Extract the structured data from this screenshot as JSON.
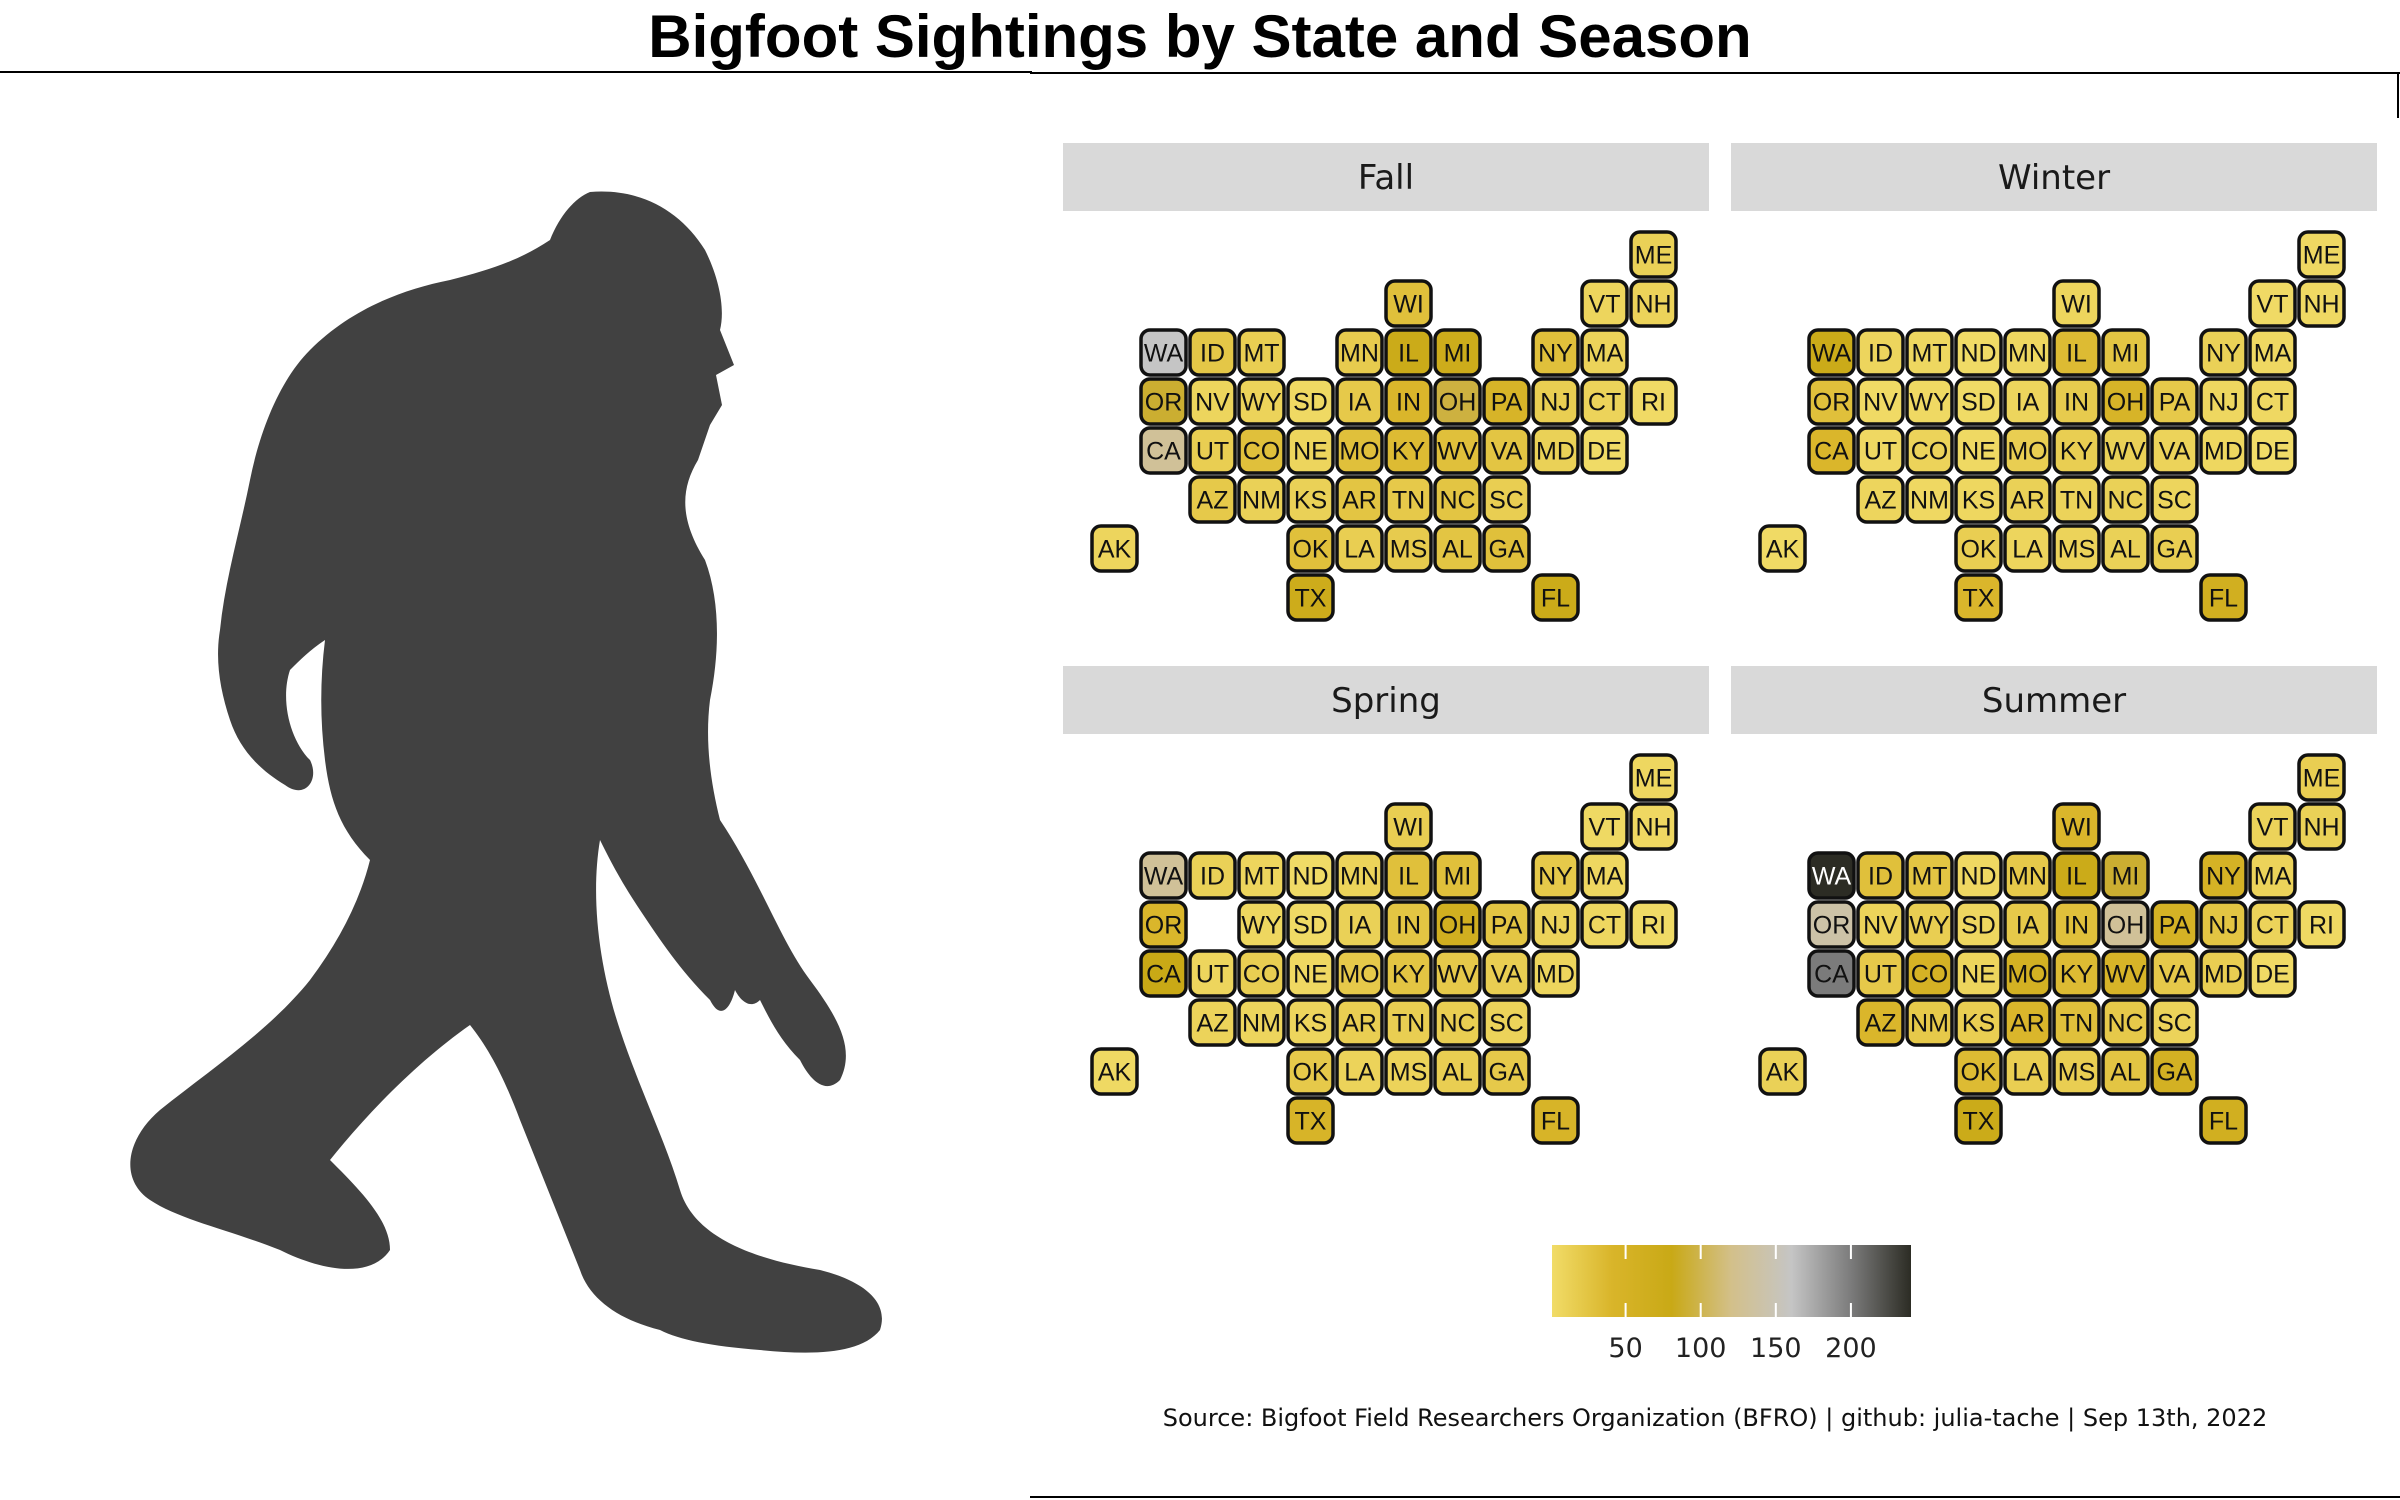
{
  "title": "Bigfoot Sightings by State and Season",
  "caption": "Source: Bigfoot Field Researchers Organization (BFRO) | github: julia-tache | Sep 13th, 2022",
  "figure": {
    "name": "bigfoot-silhouette",
    "color": "#414141"
  },
  "colors": {
    "palette": [
      "#f1dc68",
      "#d9b52a",
      "#c9a916",
      "#d3c08a",
      "#c5c5c5",
      "#7b7b7b",
      "#2c2c24"
    ],
    "tile_border": "#111111",
    "strip_background": "#d9d9d9"
  },
  "chart_data": {
    "type": "heatmap",
    "title": "Bigfoot Sightings by State and Season",
    "panels": [
      "Fall",
      "Winter",
      "Spring",
      "Summer"
    ],
    "states": [
      {
        "state": "ME",
        "col": 11,
        "row": 0
      },
      {
        "state": "WI",
        "col": 6,
        "row": 1
      },
      {
        "state": "VT",
        "col": 10,
        "row": 1
      },
      {
        "state": "NH",
        "col": 11,
        "row": 1
      },
      {
        "state": "WA",
        "col": 1,
        "row": 2
      },
      {
        "state": "ID",
        "col": 2,
        "row": 2
      },
      {
        "state": "MT",
        "col": 3,
        "row": 2
      },
      {
        "state": "ND",
        "col": 4,
        "row": 2
      },
      {
        "state": "MN",
        "col": 5,
        "row": 2
      },
      {
        "state": "IL",
        "col": 6,
        "row": 2
      },
      {
        "state": "MI",
        "col": 7,
        "row": 2
      },
      {
        "state": "NY",
        "col": 9,
        "row": 2
      },
      {
        "state": "MA",
        "col": 10,
        "row": 2
      },
      {
        "state": "OR",
        "col": 1,
        "row": 3
      },
      {
        "state": "NV",
        "col": 2,
        "row": 3
      },
      {
        "state": "WY",
        "col": 3,
        "row": 3
      },
      {
        "state": "SD",
        "col": 4,
        "row": 3
      },
      {
        "state": "IA",
        "col": 5,
        "row": 3
      },
      {
        "state": "IN",
        "col": 6,
        "row": 3
      },
      {
        "state": "OH",
        "col": 7,
        "row": 3
      },
      {
        "state": "PA",
        "col": 8,
        "row": 3
      },
      {
        "state": "NJ",
        "col": 9,
        "row": 3
      },
      {
        "state": "CT",
        "col": 10,
        "row": 3
      },
      {
        "state": "RI",
        "col": 11,
        "row": 3
      },
      {
        "state": "CA",
        "col": 1,
        "row": 4
      },
      {
        "state": "UT",
        "col": 2,
        "row": 4
      },
      {
        "state": "CO",
        "col": 3,
        "row": 4
      },
      {
        "state": "NE",
        "col": 4,
        "row": 4
      },
      {
        "state": "MO",
        "col": 5,
        "row": 4
      },
      {
        "state": "KY",
        "col": 6,
        "row": 4
      },
      {
        "state": "WV",
        "col": 7,
        "row": 4
      },
      {
        "state": "VA",
        "col": 8,
        "row": 4
      },
      {
        "state": "MD",
        "col": 9,
        "row": 4
      },
      {
        "state": "DE",
        "col": 10,
        "row": 4
      },
      {
        "state": "AZ",
        "col": 2,
        "row": 5
      },
      {
        "state": "NM",
        "col": 3,
        "row": 5
      },
      {
        "state": "KS",
        "col": 4,
        "row": 5
      },
      {
        "state": "AR",
        "col": 5,
        "row": 5
      },
      {
        "state": "TN",
        "col": 6,
        "row": 5
      },
      {
        "state": "NC",
        "col": 7,
        "row": 5
      },
      {
        "state": "SC",
        "col": 8,
        "row": 5
      },
      {
        "state": "AK",
        "col": 0,
        "row": 6
      },
      {
        "state": "OK",
        "col": 4,
        "row": 6
      },
      {
        "state": "LA",
        "col": 5,
        "row": 6
      },
      {
        "state": "MS",
        "col": 6,
        "row": 6
      },
      {
        "state": "AL",
        "col": 7,
        "row": 6
      },
      {
        "state": "GA",
        "col": 8,
        "row": 6
      },
      {
        "state": "TX",
        "col": 4,
        "row": 7
      },
      {
        "state": "FL",
        "col": 9,
        "row": 7
      }
    ],
    "values": {
      "Fall": {
        "ME": 12,
        "WI": 30,
        "VT": 8,
        "NH": 10,
        "WA": 160,
        "ID": 22,
        "MT": 15,
        "MN": 18,
        "IL": 75,
        "MI": 70,
        "NY": 30,
        "MA": 10,
        "OR": 90,
        "NV": 8,
        "WY": 10,
        "SD": 4,
        "IA": 20,
        "IN": 40,
        "OH": 95,
        "PA": 45,
        "NJ": 15,
        "CT": 10,
        "RI": 3,
        "CA": 130,
        "UT": 15,
        "CO": 30,
        "NE": 8,
        "MO": 30,
        "KY": 35,
        "WV": 30,
        "VA": 25,
        "MD": 12,
        "DE": 2,
        "AZ": 20,
        "NM": 12,
        "KS": 12,
        "AR": 25,
        "TN": 20,
        "NC": 25,
        "SC": 15,
        "AK": 8,
        "OK": 30,
        "LA": 15,
        "MS": 18,
        "AL": 25,
        "GA": 30,
        "TX": 70,
        "FL": 75
      },
      "Winter": {
        "ME": 5,
        "WI": 8,
        "VT": 3,
        "NH": 4,
        "WA": 75,
        "ID": 8,
        "MT": 6,
        "ND": 2,
        "MN": 6,
        "IL": 35,
        "MI": 25,
        "NY": 12,
        "MA": 5,
        "OR": 30,
        "NV": 3,
        "WY": 4,
        "SD": 2,
        "IA": 8,
        "IN": 18,
        "OH": 45,
        "PA": 20,
        "NJ": 6,
        "CT": 5,
        "CA": 40,
        "UT": 5,
        "CO": 10,
        "NE": 4,
        "MO": 15,
        "KY": 15,
        "WV": 12,
        "VA": 10,
        "MD": 6,
        "DE": 1,
        "AZ": 8,
        "NM": 5,
        "KS": 6,
        "AR": 12,
        "TN": 10,
        "NC": 12,
        "SC": 8,
        "AK": 3,
        "OK": 15,
        "LA": 8,
        "MS": 10,
        "AL": 12,
        "GA": 15,
        "TX": 40,
        "FL": 60
      },
      "Spring": {
        "ME": 6,
        "WI": 15,
        "VT": 4,
        "NH": 5,
        "WA": 130,
        "ID": 12,
        "MT": 8,
        "ND": 2,
        "MN": 10,
        "IL": 30,
        "MI": 30,
        "NY": 20,
        "MA": 6,
        "OR": 40,
        "WY": 6,
        "SD": 3,
        "IA": 12,
        "IN": 25,
        "OH": 60,
        "PA": 25,
        "NJ": 10,
        "CT": 6,
        "RI": 2,
        "CA": 80,
        "UT": 8,
        "CO": 15,
        "NE": 5,
        "MO": 20,
        "KY": 25,
        "WV": 20,
        "VA": 15,
        "MD": 8,
        "AZ": 10,
        "NM": 8,
        "KS": 8,
        "AR": 15,
        "TN": 15,
        "NC": 15,
        "SC": 10,
        "AK": 4,
        "OK": 20,
        "LA": 10,
        "MS": 10,
        "AL": 15,
        "GA": 20,
        "TX": 45,
        "FL": 45
      },
      "Summer": {
        "ME": 15,
        "WI": 40,
        "VT": 10,
        "NH": 12,
        "WA": 240,
        "ID": 30,
        "MT": 25,
        "ND": 5,
        "MN": 20,
        "IL": 75,
        "MI": 90,
        "NY": 50,
        "MA": 10,
        "OR": 140,
        "NV": 10,
        "WY": 15,
        "SD": 6,
        "IA": 20,
        "IN": 30,
        "OH": 130,
        "PA": 50,
        "NJ": 25,
        "CT": 10,
        "RI": 4,
        "CA": 200,
        "UT": 20,
        "CO": 50,
        "NE": 8,
        "MO": 55,
        "KY": 35,
        "WV": 45,
        "VA": 20,
        "MD": 15,
        "DE": 3,
        "AZ": 40,
        "NM": 20,
        "KS": 15,
        "AR": 40,
        "TN": 30,
        "NC": 20,
        "SC": 10,
        "AK": 12,
        "OK": 35,
        "LA": 15,
        "MS": 15,
        "AL": 25,
        "GA": 55,
        "TX": 75,
        "FL": 60
      }
    },
    "legend": {
      "range": [
        1,
        240
      ],
      "ticks": [
        50,
        100,
        150,
        200
      ],
      "placement": "bottom"
    }
  }
}
